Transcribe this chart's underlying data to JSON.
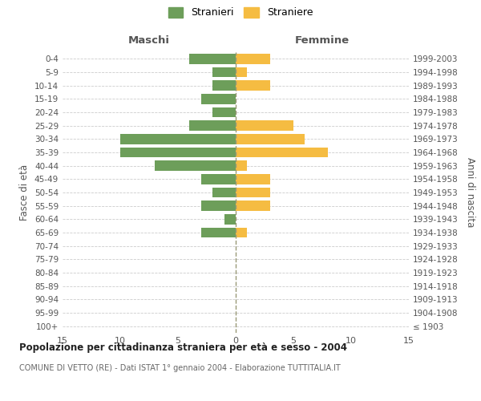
{
  "age_groups": [
    "100+",
    "95-99",
    "90-94",
    "85-89",
    "80-84",
    "75-79",
    "70-74",
    "65-69",
    "60-64",
    "55-59",
    "50-54",
    "45-49",
    "40-44",
    "35-39",
    "30-34",
    "25-29",
    "20-24",
    "15-19",
    "10-14",
    "5-9",
    "0-4"
  ],
  "birth_years": [
    "≤ 1903",
    "1904-1908",
    "1909-1913",
    "1914-1918",
    "1919-1923",
    "1924-1928",
    "1929-1933",
    "1934-1938",
    "1939-1943",
    "1944-1948",
    "1949-1953",
    "1954-1958",
    "1959-1963",
    "1964-1968",
    "1969-1973",
    "1974-1978",
    "1979-1983",
    "1984-1988",
    "1989-1993",
    "1994-1998",
    "1999-2003"
  ],
  "maschi": [
    0,
    0,
    0,
    0,
    0,
    0,
    0,
    3,
    1,
    3,
    2,
    3,
    7,
    10,
    10,
    4,
    2,
    3,
    2,
    2,
    4
  ],
  "femmine": [
    0,
    0,
    0,
    0,
    0,
    0,
    0,
    1,
    0,
    3,
    3,
    3,
    1,
    8,
    6,
    5,
    0,
    0,
    3,
    1,
    3
  ],
  "maschi_color": "#6d9e5a",
  "femmine_color": "#f5bc42",
  "background_color": "#ffffff",
  "grid_color": "#cccccc",
  "center_line_color": "#999977",
  "title": "Popolazione per cittadinanza straniera per età e sesso - 2004",
  "subtitle": "COMUNE DI VETTO (RE) - Dati ISTAT 1° gennaio 2004 - Elaborazione TUTTITALIA.IT",
  "xlabel_left": "Maschi",
  "xlabel_right": "Femmine",
  "ylabel_left": "Fasce di età",
  "ylabel_right": "Anni di nascita",
  "legend_maschi": "Stranieri",
  "legend_femmine": "Straniere",
  "xlim": 15
}
